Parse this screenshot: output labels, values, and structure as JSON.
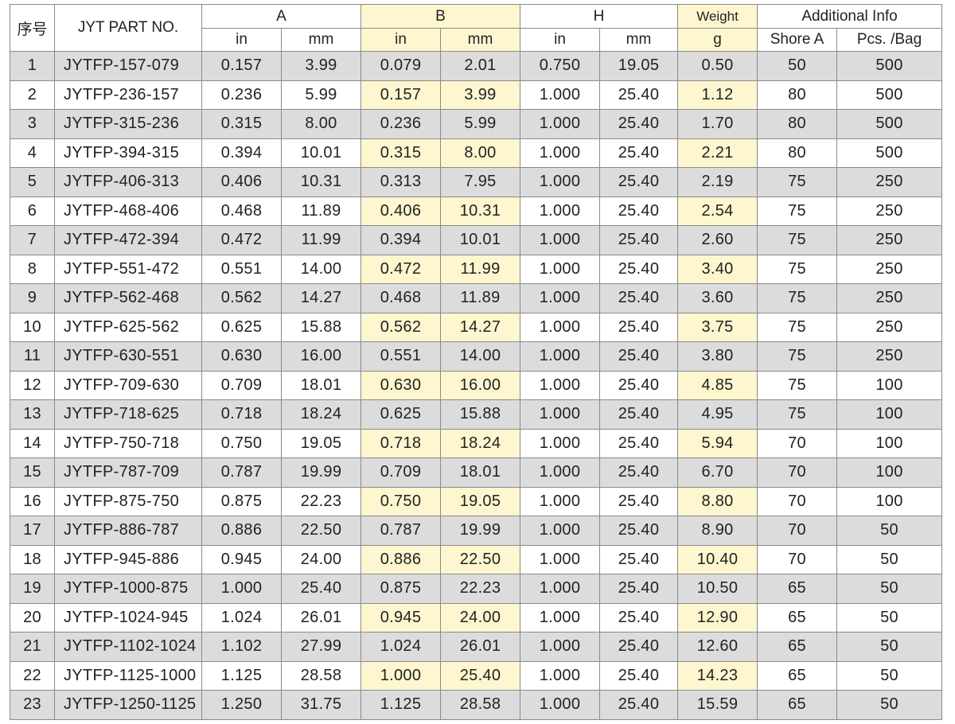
{
  "table": {
    "header": {
      "index": "序号",
      "part_no": "JYT PART NO.",
      "groups": [
        "A",
        "B",
        "H",
        "Weight",
        "Additional Info"
      ],
      "subheaders": [
        "in",
        "mm",
        "in",
        "mm",
        "in",
        "mm",
        "g",
        "Shore A",
        "Pcs. /Bag"
      ]
    },
    "rows": [
      [
        "1",
        "JYTFP-157-079",
        "0.157",
        "3.99",
        "0.079",
        "2.01",
        "0.750",
        "19.05",
        "0.50",
        "50",
        "500"
      ],
      [
        "2",
        "JYTFP-236-157",
        "0.236",
        "5.99",
        "0.157",
        "3.99",
        "1.000",
        "25.40",
        "1.12",
        "80",
        "500"
      ],
      [
        "3",
        "JYTFP-315-236",
        "0.315",
        "8.00",
        "0.236",
        "5.99",
        "1.000",
        "25.40",
        "1.70",
        "80",
        "500"
      ],
      [
        "4",
        "JYTFP-394-315",
        "0.394",
        "10.01",
        "0.315",
        "8.00",
        "1.000",
        "25.40",
        "2.21",
        "80",
        "500"
      ],
      [
        "5",
        "JYTFP-406-313",
        "0.406",
        "10.31",
        "0.313",
        "7.95",
        "1.000",
        "25.40",
        "2.19",
        "75",
        "250"
      ],
      [
        "6",
        "JYTFP-468-406",
        "0.468",
        "11.89",
        "0.406",
        "10.31",
        "1.000",
        "25.40",
        "2.54",
        "75",
        "250"
      ],
      [
        "7",
        "JYTFP-472-394",
        "0.472",
        "11.99",
        "0.394",
        "10.01",
        "1.000",
        "25.40",
        "2.60",
        "75",
        "250"
      ],
      [
        "8",
        "JYTFP-551-472",
        "0.551",
        "14.00",
        "0.472",
        "11.99",
        "1.000",
        "25.40",
        "3.40",
        "75",
        "250"
      ],
      [
        "9",
        "JYTFP-562-468",
        "0.562",
        "14.27",
        "0.468",
        "11.89",
        "1.000",
        "25.40",
        "3.60",
        "75",
        "250"
      ],
      [
        "10",
        "JYTFP-625-562",
        "0.625",
        "15.88",
        "0.562",
        "14.27",
        "1.000",
        "25.40",
        "3.75",
        "75",
        "250"
      ],
      [
        "11",
        "JYTFP-630-551",
        "0.630",
        "16.00",
        "0.551",
        "14.00",
        "1.000",
        "25.40",
        "3.80",
        "75",
        "250"
      ],
      [
        "12",
        "JYTFP-709-630",
        "0.709",
        "18.01",
        "0.630",
        "16.00",
        "1.000",
        "25.40",
        "4.85",
        "75",
        "100"
      ],
      [
        "13",
        "JYTFP-718-625",
        "0.718",
        "18.24",
        "0.625",
        "15.88",
        "1.000",
        "25.40",
        "4.95",
        "75",
        "100"
      ],
      [
        "14",
        "JYTFP-750-718",
        "0.750",
        "19.05",
        "0.718",
        "18.24",
        "1.000",
        "25.40",
        "5.94",
        "70",
        "100"
      ],
      [
        "15",
        "JYTFP-787-709",
        "0.787",
        "19.99",
        "0.709",
        "18.01",
        "1.000",
        "25.40",
        "6.70",
        "70",
        "100"
      ],
      [
        "16",
        "JYTFP-875-750",
        "0.875",
        "22.23",
        "0.750",
        "19.05",
        "1.000",
        "25.40",
        "8.80",
        "70",
        "100"
      ],
      [
        "17",
        "JYTFP-886-787",
        "0.886",
        "22.50",
        "0.787",
        "19.99",
        "1.000",
        "25.40",
        "8.90",
        "70",
        "50"
      ],
      [
        "18",
        "JYTFP-945-886",
        "0.945",
        "24.00",
        "0.886",
        "22.50",
        "1.000",
        "25.40",
        "10.40",
        "70",
        "50"
      ],
      [
        "19",
        "JYTFP-1000-875",
        "1.000",
        "25.40",
        "0.875",
        "22.23",
        "1.000",
        "25.40",
        "10.50",
        "65",
        "50"
      ],
      [
        "20",
        "JYTFP-1024-945",
        "1.024",
        "26.01",
        "0.945",
        "24.00",
        "1.000",
        "25.40",
        "12.90",
        "65",
        "50"
      ],
      [
        "21",
        "JYTFP-1102-1024",
        "1.102",
        "27.99",
        "1.024",
        "26.01",
        "1.000",
        "25.40",
        "12.60",
        "65",
        "50"
      ],
      [
        "22",
        "JYTFP-1125-1000",
        "1.125",
        "28.58",
        "1.000",
        "25.40",
        "1.000",
        "25.40",
        "14.23",
        "65",
        "50"
      ],
      [
        "23",
        "JYTFP-1250-1125",
        "1.250",
        "31.75",
        "1.125",
        "28.58",
        "1.000",
        "25.40",
        "15.59",
        "65",
        "50"
      ]
    ]
  }
}
